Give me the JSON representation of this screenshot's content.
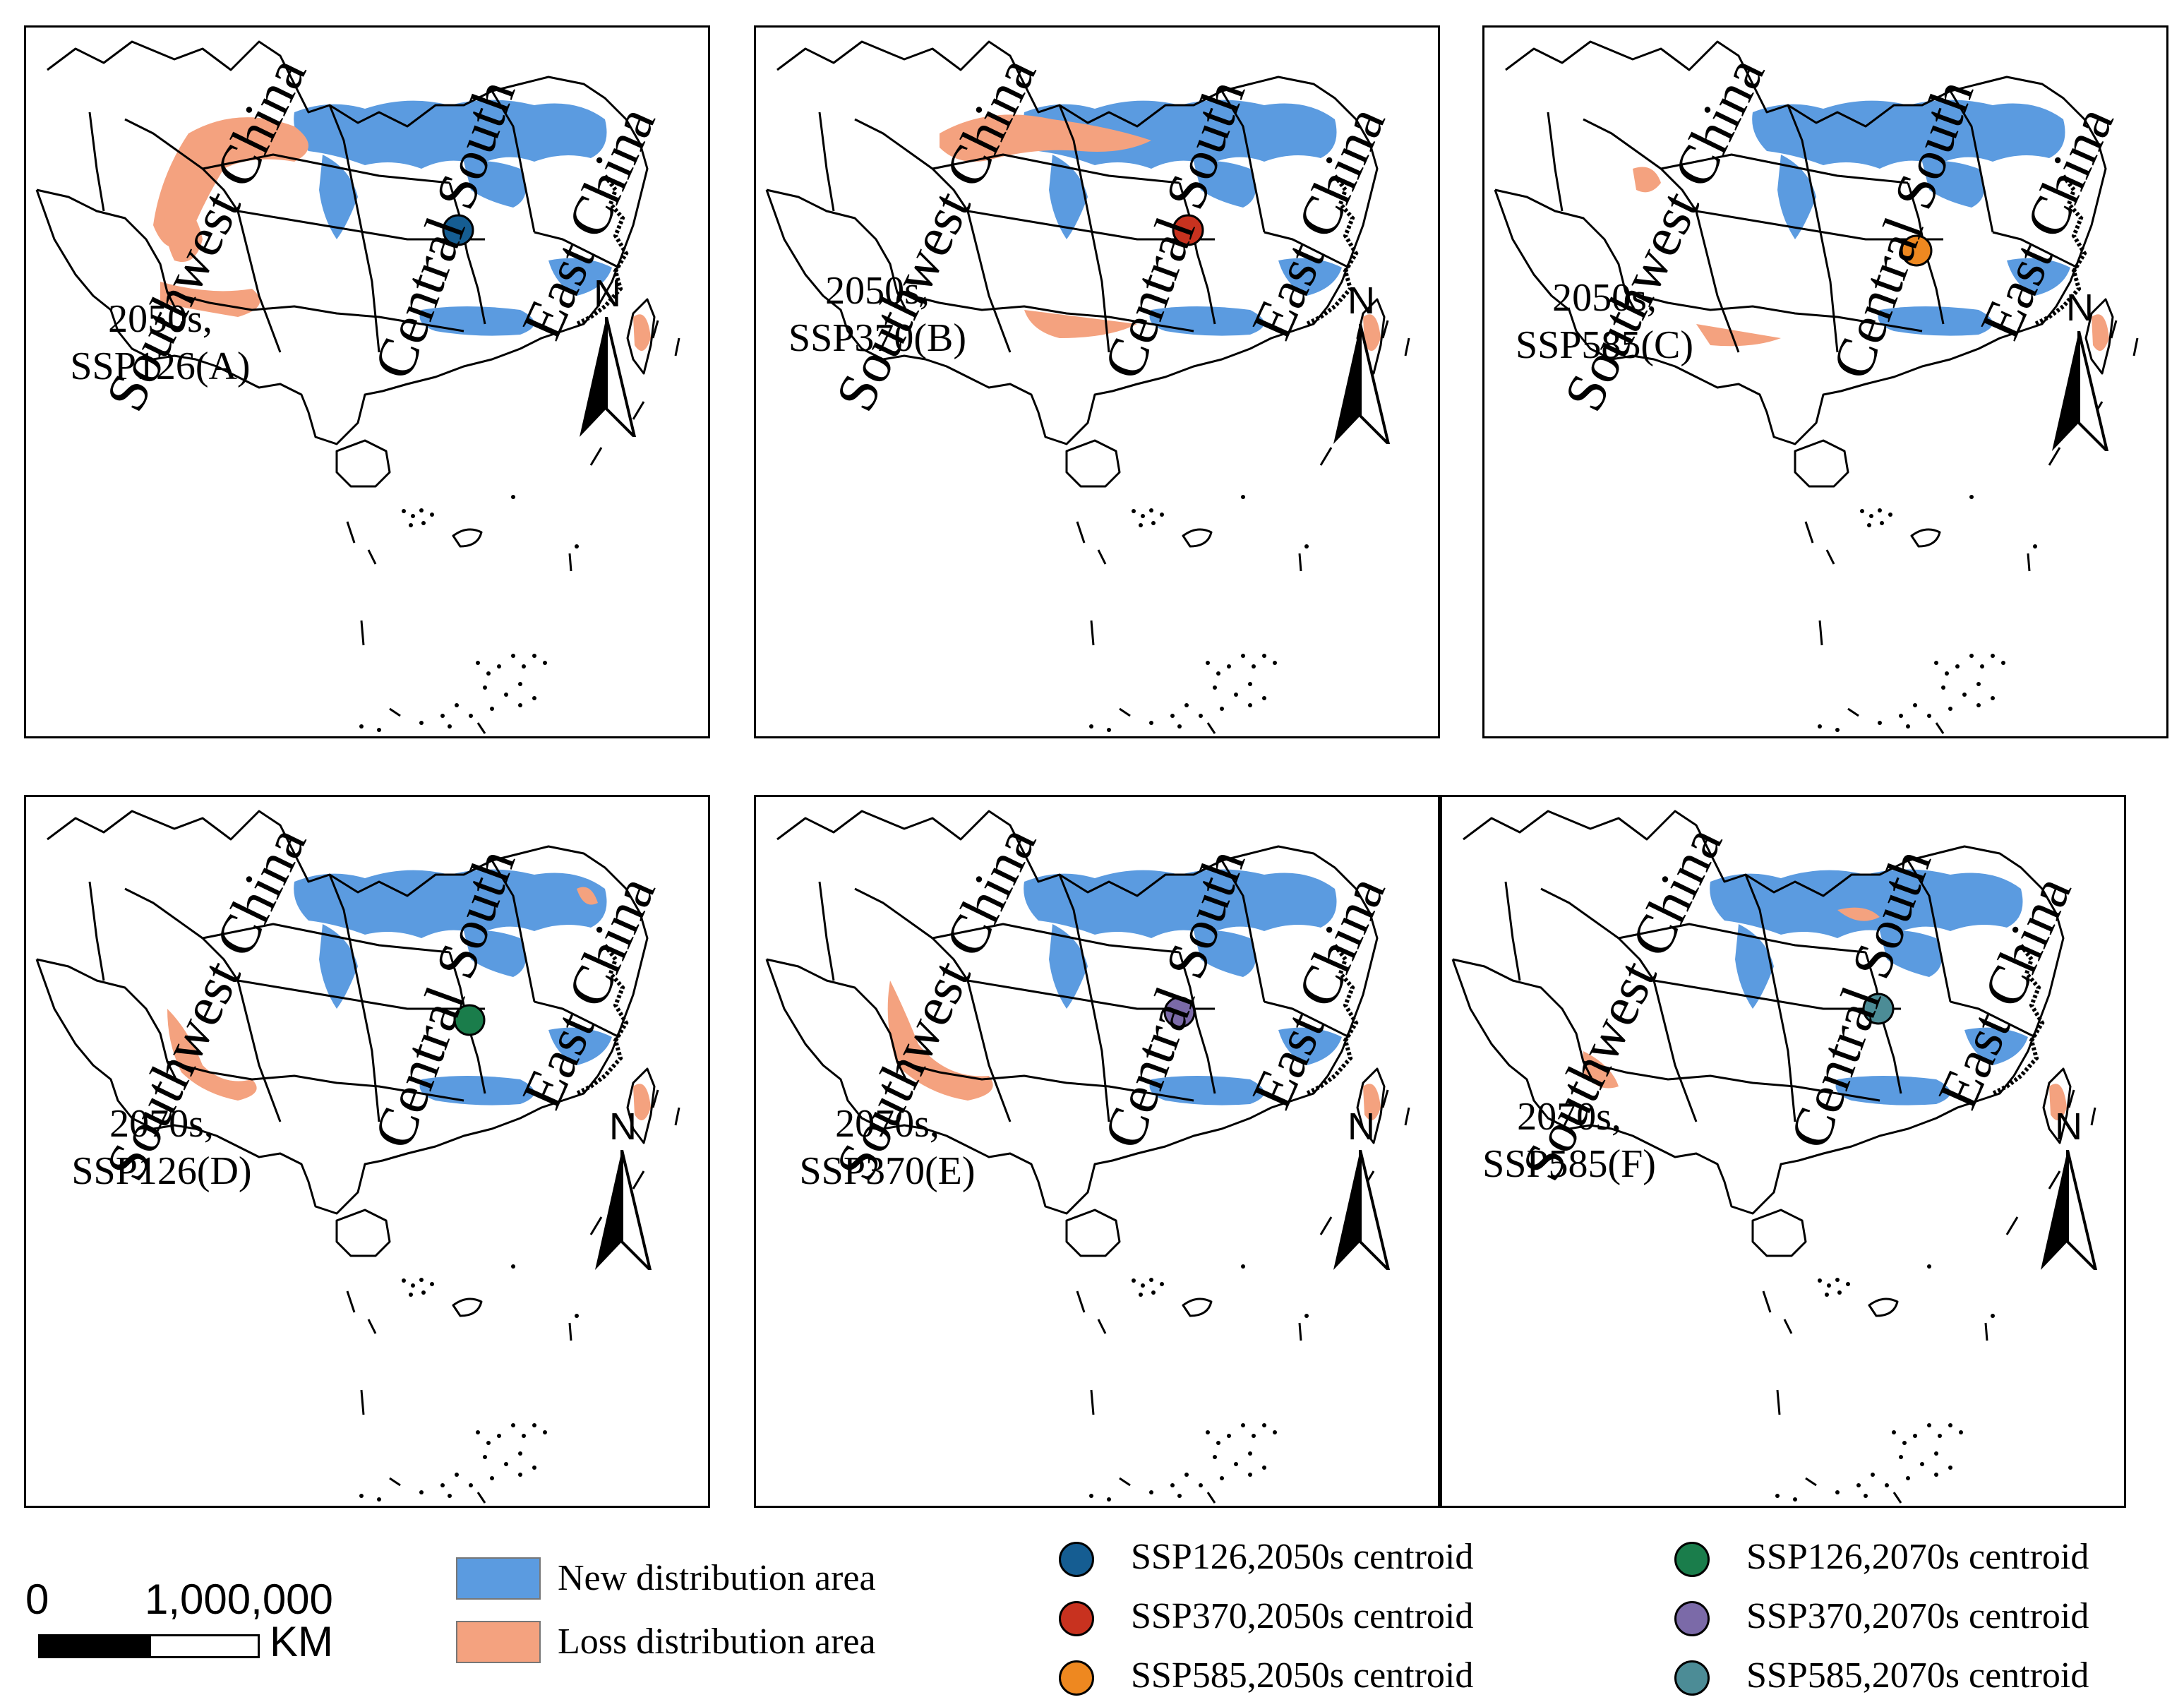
{
  "colors": {
    "new_area": "#5b9be0",
    "loss_area": "#f4a27f",
    "boundary": "#000000"
  },
  "regions": [
    "Southwest China",
    "Central South",
    "East China"
  ],
  "north_label": "N",
  "panels": [
    {
      "period": "2050s,",
      "scenario": "SSP126(A)",
      "centroid_color": "#155d92"
    },
    {
      "period": "2050s,",
      "scenario": "SSP370(B)",
      "centroid_color": "#c8321f"
    },
    {
      "period": "2050s,",
      "scenario": "SSP585(C)",
      "centroid_color": "#ee8820"
    },
    {
      "period": "2070s,",
      "scenario": "SSP126(D)",
      "centroid_color": "#1a7d4b"
    },
    {
      "period": "2070s,",
      "scenario": "SSP370(E)",
      "centroid_color": "#7b6aa8"
    },
    {
      "period": "2070s,",
      "scenario": "SSP585(F)",
      "centroid_color": "#4c8c96"
    }
  ],
  "scalebar": {
    "zero": "0",
    "max": "1,000,000",
    "unit": "KM"
  },
  "legend": {
    "area": [
      {
        "label": "New distribution area",
        "color": "#5b9be0"
      },
      {
        "label": "Loss distribution area",
        "color": "#f4a27f"
      }
    ],
    "centroids": [
      {
        "label": "SSP126,2050s centroid",
        "color": "#155d92"
      },
      {
        "label": "SSP370,2050s centroid",
        "color": "#c8321f"
      },
      {
        "label": "SSP585,2050s centroid",
        "color": "#ee8820"
      },
      {
        "label": "SSP126,2070s centroid",
        "color": "#1a7d4b"
      },
      {
        "label": "SSP370,2070s centroid",
        "color": "#7b6aa8"
      },
      {
        "label": "SSP585,2070s centroid",
        "color": "#4c8c96"
      }
    ]
  }
}
